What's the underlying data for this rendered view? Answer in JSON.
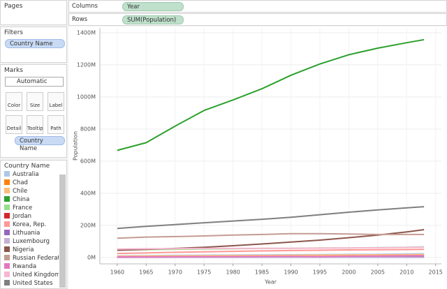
{
  "pages": {
    "title": "Pages"
  },
  "shelves": {
    "columns": {
      "label": "Columns",
      "pill": "Year"
    },
    "rows": {
      "label": "Rows",
      "pill": "SUM(Population)"
    }
  },
  "filters": {
    "title": "Filters",
    "pill": "Country Name"
  },
  "marks": {
    "title": "Marks",
    "mark_type": "Automatic",
    "buttons": [
      "Color",
      "Size",
      "Label",
      "Detail",
      "Tooltip",
      "Path"
    ],
    "pill": "Country Name"
  },
  "legend": {
    "title": "Country Name"
  },
  "chart_data": {
    "type": "line",
    "x_label": "Year",
    "y_label": "Population",
    "grid": true,
    "x": [
      1960,
      1965,
      1970,
      1975,
      1980,
      1985,
      1990,
      1995,
      2000,
      2005,
      2010,
      2013
    ],
    "xlim": [
      1957,
      2016
    ],
    "xticks": [
      1960,
      1965,
      1970,
      1975,
      1980,
      1985,
      1990,
      1995,
      2000,
      2005,
      2010,
      2015
    ],
    "ylim": [
      -40,
      1430
    ],
    "yticks": [
      {
        "value": 0,
        "label": "0M"
      },
      {
        "value": 200,
        "label": "200M"
      },
      {
        "value": 400,
        "label": "400M"
      },
      {
        "value": 600,
        "label": "600M"
      },
      {
        "value": 800,
        "label": "800M"
      },
      {
        "value": 1000,
        "label": "1000M"
      },
      {
        "value": 1200,
        "label": "1200M"
      },
      {
        "value": 1400,
        "label": "1400M"
      }
    ],
    "series": [
      {
        "name": "Australia",
        "color": "#aec7e8",
        "values": [
          10,
          11,
          13,
          14,
          15,
          16,
          17,
          18,
          19,
          20,
          22,
          23
        ]
      },
      {
        "name": "Chad",
        "color": "#ff7f0e",
        "values": [
          3,
          3.4,
          3.6,
          4,
          4.5,
          5,
          6,
          7,
          8,
          10,
          12,
          13
        ]
      },
      {
        "name": "Chile",
        "color": "#ffbb78",
        "values": [
          7.6,
          8.5,
          9.6,
          10.4,
          11.2,
          12.1,
          13.2,
          14.4,
          15.3,
          16.2,
          17,
          17.6
        ]
      },
      {
        "name": "China",
        "color": "#2ca02c",
        "values": [
          667,
          715,
          818,
          916,
          981,
          1051,
          1135,
          1205,
          1263,
          1304,
          1338,
          1357
        ]
      },
      {
        "name": "France",
        "color": "#98df8a",
        "values": [
          46,
          49,
          51,
          53,
          54,
          56,
          57,
          59,
          59,
          61,
          63,
          66
        ]
      },
      {
        "name": "Jordan",
        "color": "#d62728",
        "values": [
          0.9,
          1.1,
          1.5,
          1.8,
          2.2,
          2.7,
          3.4,
          4.3,
          4.8,
          5.4,
          6.5,
          6.5
        ]
      },
      {
        "name": "Korea, Rep.",
        "color": "#ff9896",
        "values": [
          25,
          28,
          32,
          35,
          38,
          41,
          43,
          45,
          47,
          48,
          49,
          50
        ]
      },
      {
        "name": "Lithuania",
        "color": "#9467bd",
        "values": [
          2.8,
          3,
          3.1,
          3.3,
          3.4,
          3.5,
          3.7,
          3.6,
          3.5,
          3.4,
          3.1,
          3
        ]
      },
      {
        "name": "Luxembourg",
        "color": "#c5b0d5",
        "values": [
          0.3,
          0.33,
          0.34,
          0.36,
          0.36,
          0.37,
          0.38,
          0.41,
          0.44,
          0.47,
          0.51,
          0.54
        ]
      },
      {
        "name": "Nigeria",
        "color": "#8c564b",
        "values": [
          45,
          50,
          56,
          63,
          73,
          84,
          96,
          108,
          123,
          139,
          159,
          173
        ]
      },
      {
        "name": "Russian Federati..",
        "color": "#c49c94",
        "values": [
          120,
          127,
          130,
          134,
          139,
          143,
          148,
          148,
          146,
          143,
          143,
          143
        ]
      },
      {
        "name": "Rwanda",
        "color": "#e377c2",
        "values": [
          2.9,
          3.2,
          3.8,
          4.4,
          5.2,
          6.2,
          7.1,
          5.7,
          8,
          9,
          10.3,
          11
        ]
      },
      {
        "name": "United Kingdom",
        "color": "#f7b6d2",
        "values": [
          52,
          54,
          55,
          56,
          56,
          57,
          57,
          58,
          59,
          60,
          62,
          64
        ]
      },
      {
        "name": "United States",
        "color": "#7f7f7f",
        "values": [
          181,
          194,
          205,
          216,
          227,
          238,
          250,
          266,
          282,
          296,
          309,
          316
        ]
      }
    ]
  }
}
